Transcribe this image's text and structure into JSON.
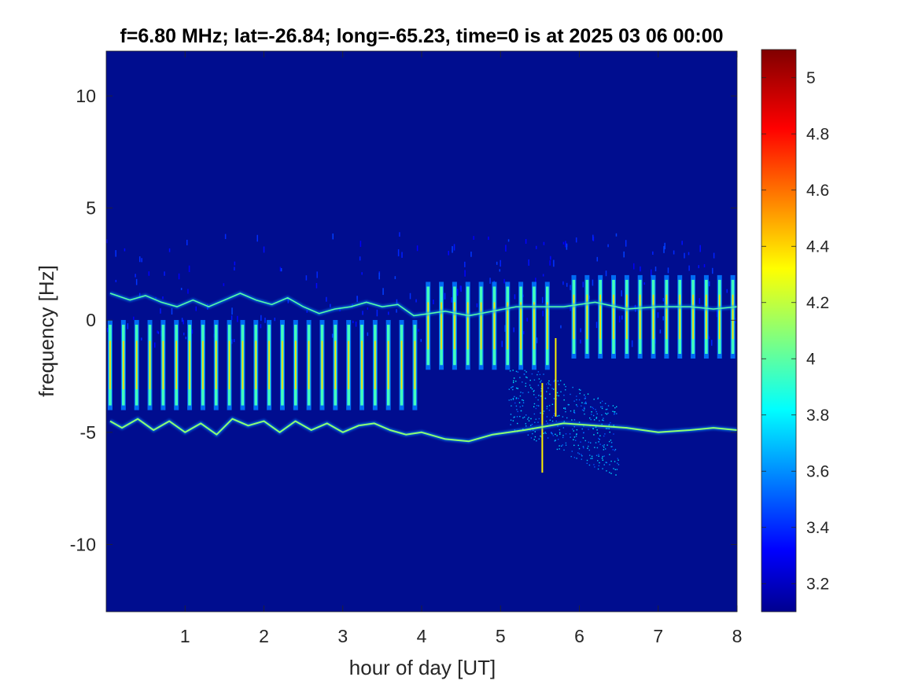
{
  "chart_data": {
    "type": "heatmap",
    "title": "f=6.80 MHz;  lat=-26.84; long=-65.23, time=0 is at 2025 03 06 00:00",
    "xlabel": "hour of day [UT]",
    "ylabel": "frequency [Hz]",
    "xlim": [
      0,
      8
    ],
    "ylim": [
      -13,
      12
    ],
    "x_ticks": [
      1,
      2,
      3,
      4,
      5,
      6,
      7,
      8
    ],
    "y_ticks": [
      10,
      5,
      0,
      -5,
      -10
    ],
    "colorbar": {
      "colormap": "jet",
      "range": [
        3.1,
        5.1
      ],
      "ticks": [
        5,
        4.8,
        4.6,
        4.4,
        4.2,
        4,
        3.8,
        3.6,
        3.4,
        3.2
      ]
    },
    "background_value": 3.15,
    "background_color": "#000d8f",
    "upper_trace": {
      "description_value": 4.0,
      "points": [
        [
          0.05,
          1.2
        ],
        [
          0.3,
          0.9
        ],
        [
          0.5,
          1.1
        ],
        [
          0.7,
          0.8
        ],
        [
          0.9,
          0.6
        ],
        [
          1.1,
          0.9
        ],
        [
          1.3,
          0.6
        ],
        [
          1.5,
          0.9
        ],
        [
          1.7,
          1.2
        ],
        [
          1.9,
          0.9
        ],
        [
          2.1,
          0.7
        ],
        [
          2.3,
          1.0
        ],
        [
          2.5,
          0.6
        ],
        [
          2.7,
          0.3
        ],
        [
          2.9,
          0.5
        ],
        [
          3.1,
          0.6
        ],
        [
          3.3,
          0.8
        ],
        [
          3.5,
          0.6
        ],
        [
          3.7,
          0.7
        ],
        [
          3.9,
          0.2
        ],
        [
          4.1,
          0.3
        ],
        [
          4.3,
          0.4
        ],
        [
          4.6,
          0.2
        ],
        [
          4.9,
          0.4
        ],
        [
          5.2,
          0.6
        ],
        [
          5.8,
          0.6
        ],
        [
          6.2,
          0.8
        ],
        [
          6.6,
          0.5
        ],
        [
          7.0,
          0.6
        ],
        [
          7.4,
          0.6
        ],
        [
          7.7,
          0.5
        ],
        [
          8.0,
          0.6
        ]
      ]
    },
    "lower_trace": {
      "description_value": 4.1,
      "points": [
        [
          0.05,
          -4.5
        ],
        [
          0.2,
          -4.8
        ],
        [
          0.4,
          -4.4
        ],
        [
          0.6,
          -4.9
        ],
        [
          0.8,
          -4.5
        ],
        [
          1.0,
          -5.0
        ],
        [
          1.2,
          -4.6
        ],
        [
          1.4,
          -5.1
        ],
        [
          1.6,
          -4.4
        ],
        [
          1.8,
          -4.7
        ],
        [
          2.0,
          -4.5
        ],
        [
          2.2,
          -5.0
        ],
        [
          2.4,
          -4.5
        ],
        [
          2.6,
          -4.9
        ],
        [
          2.8,
          -4.6
        ],
        [
          3.0,
          -5.0
        ],
        [
          3.2,
          -4.7
        ],
        [
          3.4,
          -4.6
        ],
        [
          3.6,
          -4.9
        ],
        [
          3.8,
          -5.1
        ],
        [
          4.0,
          -5.0
        ],
        [
          4.3,
          -5.3
        ],
        [
          4.6,
          -5.4
        ],
        [
          4.9,
          -5.1
        ],
        [
          5.3,
          -4.9
        ],
        [
          5.8,
          -4.6
        ],
        [
          6.2,
          -4.7
        ],
        [
          6.6,
          -4.8
        ],
        [
          7.0,
          -5.0
        ],
        [
          7.4,
          -4.9
        ],
        [
          7.7,
          -4.8
        ],
        [
          8.0,
          -4.9
        ]
      ]
    },
    "streaks": {
      "description_value": 4.4,
      "start_hour": 0.05,
      "spacing_hour": 0.168,
      "segments": [
        {
          "from_hour": 0.0,
          "to_hour": 4.05,
          "top_hz": -0.2,
          "bottom_hz": -3.8
        },
        {
          "from_hour": 4.05,
          "to_hour": 5.6,
          "top_hz": 1.5,
          "bottom_hz": -2.0
        },
        {
          "from_hour": 5.85,
          "to_hour": 8.0,
          "top_hz": 1.8,
          "bottom_hz": -1.5
        }
      ]
    },
    "vertical_lines": [
      {
        "hour": 5.53,
        "top_hz": -2.8,
        "bottom_hz": -6.8
      },
      {
        "hour": 5.7,
        "top_hz": -0.8,
        "bottom_hz": -4.3
      }
    ],
    "diffuse_region": {
      "from_hour": 5.1,
      "to_hour": 6.5,
      "top_hz": -2.2,
      "bottom_hz": -7.2
    }
  }
}
